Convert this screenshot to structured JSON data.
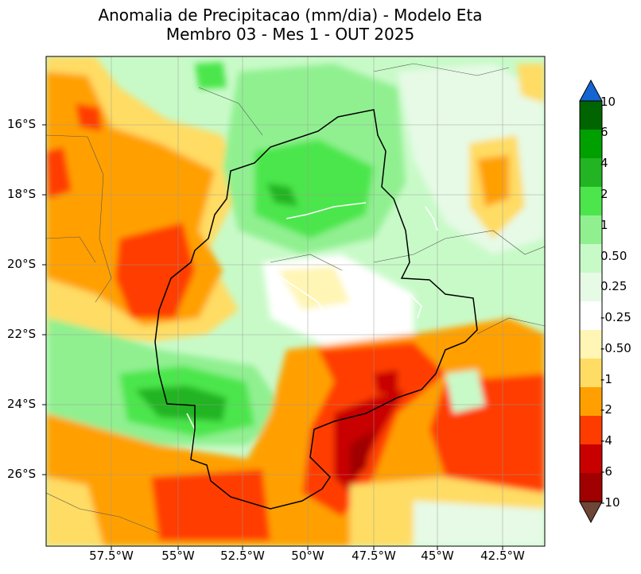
{
  "title": {
    "line1": "Anomalia de Precipitacao (mm/dia) - Modelo Eta",
    "line2": "Membro 03 - Mes 1 - OUT 2025"
  },
  "axes": {
    "lat_labels": [
      "16°S",
      "18°S",
      "20°S",
      "22°S",
      "24°S",
      "26°S"
    ],
    "lon_labels": [
      "57.5°W",
      "55°W",
      "52.5°W",
      "50°W",
      "47.5°W",
      "45°W",
      "42.5°W"
    ]
  },
  "colorbar": {
    "labels": [
      "10",
      "6",
      "4",
      "2",
      "1",
      "0.50",
      "0.25",
      "-0.25",
      "-0.50",
      "-1",
      "-2",
      "-4",
      "-6",
      "-10"
    ],
    "colors": [
      "#006400",
      "#00a000",
      "#22b422",
      "#4ce64c",
      "#90f090",
      "#c8fac8",
      "#e6fae6",
      "#ffffff",
      "#fff5b4",
      "#ffdc64",
      "#ffa000",
      "#ff3c00",
      "#c80000",
      "#a00000"
    ],
    "over_color": "#1464d2",
    "under_color": "#6e4636"
  }
}
